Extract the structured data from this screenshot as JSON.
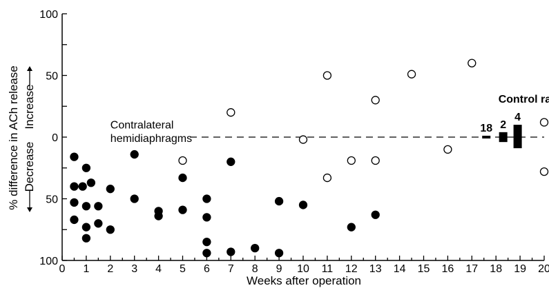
{
  "chart_data": {
    "type": "scatter",
    "xlabel": "Weeks after operation",
    "ylabel": "% difference in ACh release",
    "ylabel_direction": {
      "decrease": "Decrease",
      "increase": "Increase"
    },
    "xlim": [
      0,
      20
    ],
    "ylim": [
      -100,
      100
    ],
    "x_ticks": [
      0,
      1,
      2,
      3,
      4,
      5,
      6,
      7,
      8,
      9,
      10,
      11,
      12,
      13,
      14,
      15,
      16,
      17,
      18,
      19,
      20
    ],
    "y_ticks": [
      {
        "value": 100,
        "label": "100"
      },
      {
        "value": 50,
        "label": "50"
      },
      {
        "value": 0,
        "label": "0"
      },
      {
        "value": -50,
        "label": "50"
      },
      {
        "value": -100,
        "label": "100"
      }
    ],
    "reference_line": {
      "y": 0,
      "style": "dashed"
    },
    "annotations": [
      {
        "text": "Contralateral",
        "x": 2.0,
        "y": 7
      },
      {
        "text": "hemidiaphragms",
        "x": 2.0,
        "y": -4
      },
      {
        "text": "Control rats",
        "x": 18.1,
        "y": 28
      }
    ],
    "series": [
      {
        "marker": "filled-circle",
        "points": [
          [
            0.5,
            -16
          ],
          [
            0.5,
            -40
          ],
          [
            0.5,
            -53
          ],
          [
            0.5,
            -67
          ],
          [
            0.85,
            -40
          ],
          [
            1,
            -25
          ],
          [
            1,
            -56
          ],
          [
            1,
            -73
          ],
          [
            1,
            -82
          ],
          [
            1.2,
            -37
          ],
          [
            1.5,
            -56
          ],
          [
            1.5,
            -70
          ],
          [
            2,
            -42
          ],
          [
            2,
            -75
          ],
          [
            3,
            -14
          ],
          [
            3,
            -50
          ],
          [
            4,
            -60
          ],
          [
            4,
            -64
          ],
          [
            5,
            -33
          ],
          [
            5,
            -59
          ],
          [
            6,
            -50
          ],
          [
            6,
            -65
          ],
          [
            6,
            -85
          ],
          [
            6,
            -94
          ],
          [
            7,
            -20
          ],
          [
            7,
            -93
          ],
          [
            8,
            -90
          ],
          [
            9,
            -52
          ],
          [
            9,
            -94
          ],
          [
            10,
            -55
          ],
          [
            12,
            -73
          ],
          [
            13,
            -63
          ]
        ]
      },
      {
        "marker": "open-circle",
        "points": [
          [
            5,
            -19
          ],
          [
            7,
            20
          ],
          [
            10,
            -2
          ],
          [
            11,
            50
          ],
          [
            11,
            -33
          ],
          [
            12,
            -19
          ],
          [
            13,
            30
          ],
          [
            13,
            -19
          ],
          [
            14.5,
            51
          ],
          [
            16,
            -10
          ],
          [
            17,
            60
          ],
          [
            20,
            12
          ],
          [
            20,
            -28
          ]
        ]
      }
    ],
    "control_rats": [
      {
        "label": "18",
        "x": 17.6,
        "mean": 0,
        "range": [
          -1,
          1
        ]
      },
      {
        "label": "2",
        "x": 18.3,
        "mean": 0,
        "range": [
          -4,
          4
        ]
      },
      {
        "label": "4",
        "x": 18.9,
        "mean": 0,
        "range": [
          -9,
          10
        ]
      }
    ]
  }
}
